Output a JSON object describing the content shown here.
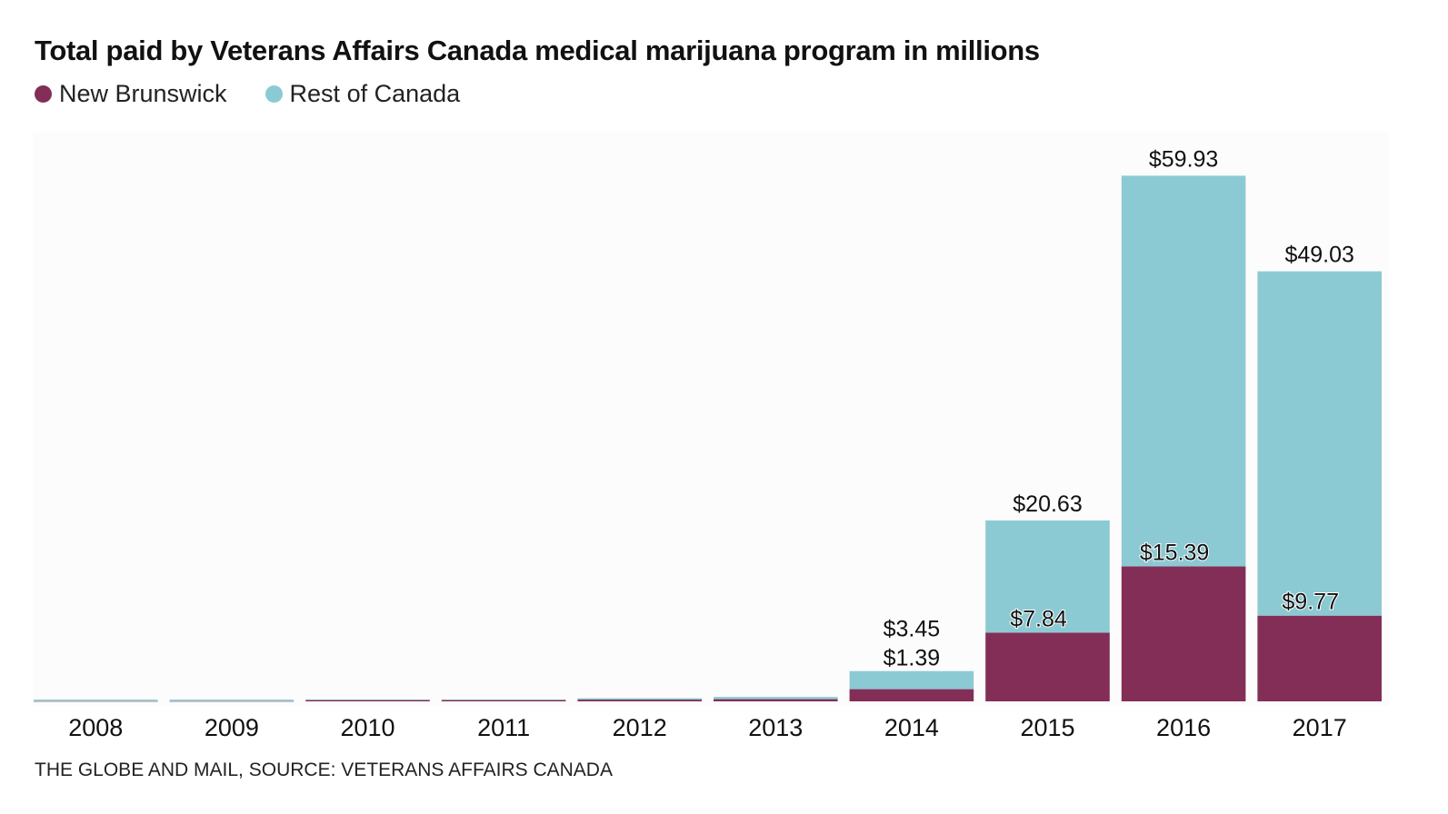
{
  "title": "Total paid by Veterans Affairs Canada medical marijuana program in millions",
  "source": "THE GLOBE AND MAIL, SOURCE: VETERANS AFFAIRS CANADA",
  "colors": {
    "new_brunswick": "#832e56",
    "rest_of_canada": "#8ccad3",
    "text": "#111111"
  },
  "chart_data": {
    "type": "bar",
    "stacked": true,
    "title": "Total paid by Veterans Affairs Canada medical marijuana program in millions",
    "xlabel": "",
    "ylabel": "",
    "ylim": [
      0,
      62
    ],
    "grid": false,
    "legend_position": "top-left",
    "categories": [
      "2008",
      "2009",
      "2010",
      "2011",
      "2012",
      "2013",
      "2014",
      "2015",
      "2016",
      "2017"
    ],
    "series": [
      {
        "name": "New Brunswick",
        "color": "#832e56",
        "values": [
          0.02,
          0.02,
          0.15,
          0.15,
          0.2,
          0.25,
          1.39,
          7.84,
          15.39,
          9.77
        ],
        "labels": [
          "",
          "",
          "",
          "",
          "",
          "",
          "$1.39",
          "$7.84",
          "$15.39",
          "$9.77"
        ]
      },
      {
        "name": "Rest of Canada",
        "color": "#8ccad3",
        "values": [
          0.18,
          0.18,
          0.05,
          0.05,
          0.15,
          0.25,
          2.06,
          12.79,
          44.54,
          39.26
        ]
      }
    ],
    "totals": [
      0.2,
      0.2,
      0.2,
      0.2,
      0.35,
      0.5,
      3.45,
      20.63,
      59.93,
      49.03
    ],
    "total_labels": [
      "",
      "",
      "",
      "",
      "",
      "",
      "$3.45",
      "$20.63",
      "$59.93",
      "$49.03"
    ]
  }
}
